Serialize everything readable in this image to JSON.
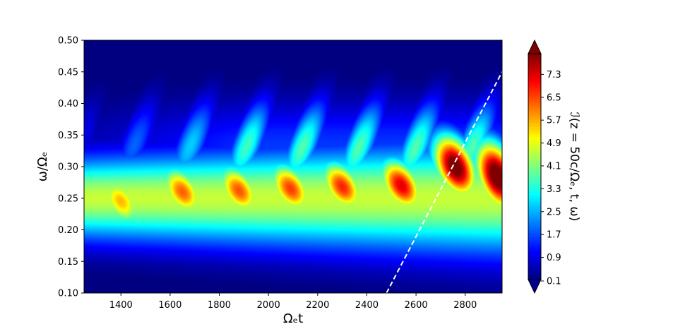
{
  "chart_data": {
    "type": "heatmap",
    "xlabel": "Ωₑt",
    "ylabel": "ω/Ωₑ",
    "colorbar_label": "ℐ(z = 50c/Ωₑ, t, ω)",
    "colormap": "jet",
    "xlim": [
      1250,
      2950
    ],
    "ylim": [
      0.1,
      0.5
    ],
    "x_ticks": [
      1400,
      1600,
      1800,
      2000,
      2200,
      2400,
      2600,
      2800
    ],
    "x_tick_labels": [
      "1400",
      "1600",
      "1800",
      "2000",
      "2200",
      "2400",
      "2600",
      "2800"
    ],
    "y_ticks": [
      0.1,
      0.15,
      0.2,
      0.25,
      0.3,
      0.35,
      0.4,
      0.45,
      0.5
    ],
    "y_tick_labels": [
      "0.10",
      "0.15",
      "0.20",
      "0.25",
      "0.30",
      "0.35",
      "0.40",
      "0.45",
      "0.50"
    ],
    "colorbar_range": [
      0.1,
      8.0
    ],
    "colorbar_ticks": [
      0.1,
      0.9,
      1.7,
      2.5,
      3.3,
      4.1,
      4.9,
      5.7,
      6.5,
      7.3
    ],
    "colorbar_tick_labels": [
      "0.1",
      "0.9",
      "1.7",
      "2.5",
      "3.3",
      "4.1",
      "4.9",
      "5.7",
      "6.5",
      "7.3"
    ],
    "background_band": {
      "center_omega": 0.25,
      "level": 4.6
    },
    "blobs": [
      {
        "t": 1400,
        "omega": 0.245,
        "peak": 4.9
      },
      {
        "t": 1650,
        "omega": 0.26,
        "peak": 5.6
      },
      {
        "t": 1880,
        "omega": 0.262,
        "peak": 5.7
      },
      {
        "t": 2090,
        "omega": 0.265,
        "peak": 5.9
      },
      {
        "t": 2300,
        "omega": 0.268,
        "peak": 6.1
      },
      {
        "t": 2540,
        "omega": 0.27,
        "peak": 6.6
      },
      {
        "t": 2760,
        "omega": 0.3,
        "peak": 7.8
      },
      {
        "t": 2930,
        "omega": 0.285,
        "peak": 8.0
      }
    ],
    "overlay_line": {
      "style": "dashed",
      "color": "#ffffff",
      "points": [
        [
          2480,
          0.1
        ],
        [
          2950,
          0.45
        ]
      ]
    }
  }
}
